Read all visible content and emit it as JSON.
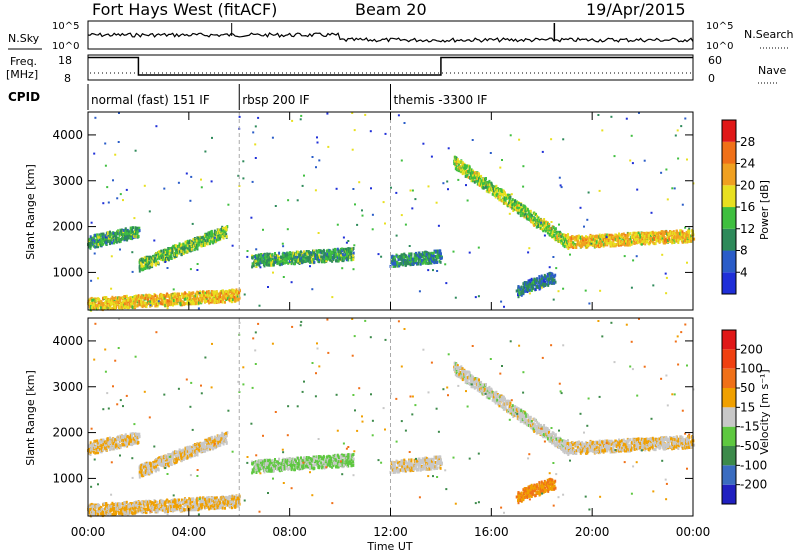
{
  "header": {
    "station": "Fort Hays West (fitACF)",
    "beam": "Beam 20",
    "date": "19/Apr/2015"
  },
  "panels": {
    "nsky_label": "N.Sky",
    "nsky_ticks": [
      "10^5",
      "10^0"
    ],
    "nsearch_label": "N.Search",
    "nsearch_ticks": [
      "10^5",
      "10^0"
    ],
    "freq_label": "Freq.",
    "freq_unit": "[MHz]",
    "freq_ticks": [
      "18",
      "8"
    ],
    "nave_label": "Nave",
    "nave_ticks": [
      "60",
      "0"
    ],
    "cpid_label": "CPID"
  },
  "cpid_segments": [
    {
      "label": "normal (fast) 151 IF",
      "start_hour": 0,
      "end_hour": 6
    },
    {
      "label": "rbsp 200 IF",
      "start_hour": 6,
      "end_hour": 12
    },
    {
      "label": "themis -3300 IF",
      "start_hour": 12,
      "end_hour": 24
    }
  ],
  "xaxis": {
    "label": "Time UT",
    "ticks": [
      "00:00",
      "04:00",
      "08:00",
      "12:00",
      "16:00",
      "20:00",
      "00:00"
    ]
  },
  "yaxis": {
    "label": "Slant Range [km]",
    "ticks": [
      "1000",
      "2000",
      "3000",
      "4000"
    ]
  },
  "power_colorbar": {
    "label": "Power [dB]",
    "ticks": [
      "4",
      "8",
      "12",
      "16",
      "20",
      "24",
      "28"
    ],
    "colors": [
      "#1f2fd8",
      "#2a5cc8",
      "#2e8a5a",
      "#3fbf3f",
      "#e8e020",
      "#f0a020",
      "#f07018",
      "#e01818"
    ]
  },
  "velocity_colorbar": {
    "label": "Velocity [m s⁻¹]",
    "ticks": [
      "200",
      "100",
      "50",
      "15",
      "-15",
      "-50",
      "-100",
      "-200"
    ],
    "colors": [
      "#2020c0",
      "#3a6cc0",
      "#3c8a4a",
      "#5ec840",
      "#c8c8c8",
      "#f0a000",
      "#f07018",
      "#f04010",
      "#e01818"
    ]
  },
  "chart_data": {
    "type": "heatmap",
    "title": "Fort Hays West (fitACF)",
    "xlabel": "Time UT",
    "ylabel": "Slant Range [km]",
    "xlim": [
      "00:00",
      "24:00"
    ],
    "ylim": [
      180,
      4500
    ],
    "freq_steps": [
      {
        "start_hour": 0,
        "end_hour": 2,
        "freq_mhz": 17
      },
      {
        "start_hour": 2,
        "end_hour": 14,
        "freq_mhz": 10
      },
      {
        "start_hour": 14,
        "end_hour": 24,
        "freq_mhz": 17
      }
    ],
    "echo_bands": [
      {
        "start_hour": 0.0,
        "end_hour": 2.0,
        "range_start_km": 1650,
        "range_end_km": 1900,
        "power_db": 12,
        "velocity": -10
      },
      {
        "start_hour": 2.0,
        "end_hour": 5.5,
        "range_start_km": 1150,
        "range_end_km": 1900,
        "power_db": 14,
        "velocity": -10
      },
      {
        "start_hour": 0.0,
        "end_hour": 6.0,
        "range_start_km": 300,
        "range_end_km": 500,
        "power_db": 20,
        "velocity": -15
      },
      {
        "start_hour": 6.5,
        "end_hour": 10.5,
        "range_start_km": 1250,
        "range_end_km": 1400,
        "power_db": 12,
        "velocity": 20
      },
      {
        "start_hour": 12.0,
        "end_hour": 14.0,
        "range_start_km": 1250,
        "range_end_km": 1350,
        "power_db": 10,
        "velocity": -5
      },
      {
        "start_hour": 14.5,
        "end_hour": 19.0,
        "range_start_km": 3400,
        "range_end_km": 1650,
        "power_db": 16,
        "velocity": 0
      },
      {
        "start_hour": 19.0,
        "end_hour": 24.0,
        "range_start_km": 1650,
        "range_end_km": 1800,
        "power_db": 20,
        "velocity": -10
      },
      {
        "start_hour": 17.0,
        "end_hour": 18.5,
        "range_start_km": 600,
        "range_end_km": 900,
        "power_db": 8,
        "velocity": -50
      }
    ]
  }
}
